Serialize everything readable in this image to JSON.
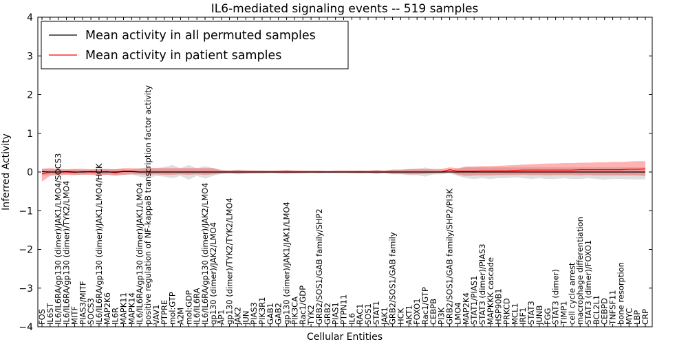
{
  "chart_data": {
    "type": "line",
    "title": "IL6-mediated signaling events -- 519 samples",
    "xlabel": "Cellular Entities",
    "ylabel": "Inferred Activity",
    "ylim": [
      -4,
      4
    ],
    "yticks": [
      "4",
      "3",
      "2",
      "1",
      "0",
      "−1",
      "−2",
      "−3",
      "−4"
    ],
    "ytick_values": [
      4,
      3,
      2,
      1,
      0,
      -1,
      -2,
      -3,
      -4
    ],
    "legend": {
      "position": "top-left",
      "entries": [
        {
          "label": "Mean activity in all permuted samples",
          "color": "#000000"
        },
        {
          "label": "Mean activity in patient samples",
          "color": "#ff0000"
        }
      ]
    },
    "categories": [
      "FOS",
      "IL6ST",
      "IL6/IL6RA/gp130 (dimer)/JAK1/LMO4/SOCS3",
      "IL6/IL6RA/gp130 (dimer)/TYK2/LMO4",
      "MITF",
      "PIAS3/MITF",
      "SOCS3",
      "IL6/IL6RA/gp130 (dimer)/JAK1/LMO4/HCK",
      "MAP2K6",
      "IL6R",
      "MAPK11",
      "MAPK14",
      "IL6/IL6RA/gp130 (dimer)/JAK1/LMO4",
      "positive regulation of NF-kappaB transcription factor activity",
      "VAV1",
      "PTPRE",
      "mol:GTP",
      "A2M",
      "mol:GDP",
      "IL6/IL6RA",
      "IL6/IL6RA/gp130 (dimer)/JAK2/LMO4",
      "gp130 (dimer)/JAK2/LMO4",
      "AP1",
      "gp130 (dimer)/TYK2/TYK2/LMO4",
      "JAK2",
      "JUN",
      "PIAS3",
      "PIK3R1",
      "GAB1",
      "GAB2",
      "gp130 (dimer)/JAK1/JAK1/LMO4",
      "PIK3CA",
      "Rac1/GDP",
      "TYK2",
      "GRB2/SOS1/GAB family/SHP2",
      "GRB2",
      "PIAS1",
      "PTPN11",
      "IL6",
      "RAC1",
      "SOS1",
      "STAT1",
      "JAK1",
      "GRB2/SOS1/GAB family",
      "HCK",
      "AKT1",
      "FOXO1",
      "Rac1/GTP",
      "CEBPB",
      "PI3K",
      "GRB2/SOS1/GAB family/SHP2/PI3K",
      "LMO4",
      "MAP2K4",
      "STAT1/PIAS1",
      "STAT3 (dimer)/PIAS3",
      "MAPKKK cascade",
      "HSP90B1",
      "PRKCD",
      "MCL1",
      "IRF1",
      "STAT3",
      "JUNB",
      "FGG",
      "STAT3 (dimer)",
      "TIMP1",
      "cell cycle arrest",
      "macrophage differentiation",
      "STAT3 (dimer)/FOXO1",
      "BCL2L1",
      "CEBPD",
      "TNFSF11",
      "bone resorption",
      "MYC",
      "LBP",
      "CRP"
    ],
    "series": [
      {
        "name": "Mean activity in all permuted samples",
        "color": "#000000",
        "values": [
          0.01,
          0.0,
          0.0,
          0.01,
          0.0,
          0.0,
          0.01,
          0.0,
          0.0,
          0.0,
          0.01,
          0.01,
          0.0,
          0.0,
          0.0,
          0.0,
          0.0,
          0.0,
          0.0,
          0.0,
          0.0,
          0.0,
          0.0,
          0.0,
          0.0,
          0.0,
          0.0,
          0.0,
          0.0,
          0.0,
          0.0,
          0.0,
          0.0,
          0.0,
          0.0,
          0.0,
          0.0,
          0.0,
          0.0,
          0.0,
          0.0,
          0.0,
          0.0,
          0.0,
          0.0,
          0.0,
          0.0,
          0.0,
          0.0,
          0.0,
          0.0,
          0.0,
          0.0,
          0.0,
          0.0,
          0.0,
          0.0,
          0.0,
          0.0,
          0.0,
          0.0,
          0.0,
          0.0,
          0.0,
          0.0,
          0.0,
          0.0,
          0.0,
          0.0,
          0.0,
          0.0,
          0.0,
          0.0,
          0.0,
          0.0
        ],
        "band_low": [
          -0.09,
          -0.08,
          -0.07,
          -0.06,
          -0.07,
          -0.06,
          -0.06,
          -0.08,
          -0.07,
          -0.07,
          -0.07,
          -0.06,
          -0.12,
          -0.15,
          -0.1,
          -0.12,
          -0.16,
          -0.1,
          -0.2,
          -0.1,
          -0.17,
          -0.1,
          -0.05,
          -0.04,
          -0.06,
          -0.05,
          -0.04,
          -0.04,
          -0.03,
          -0.04,
          -0.05,
          -0.04,
          -0.03,
          -0.03,
          -0.03,
          -0.03,
          -0.03,
          -0.03,
          -0.03,
          -0.04,
          -0.03,
          -0.05,
          -0.03,
          -0.06,
          -0.06,
          -0.08,
          -0.08,
          -0.12,
          -0.06,
          -0.06,
          -0.04,
          -0.1,
          -0.16,
          -0.18,
          -0.16,
          -0.18,
          -0.16,
          -0.16,
          -0.14,
          -0.16,
          -0.18,
          -0.16,
          -0.18,
          -0.18,
          -0.16,
          -0.18,
          -0.18,
          -0.16,
          -0.18,
          -0.2,
          -0.18,
          -0.18,
          -0.19,
          -0.19,
          -0.19
        ],
        "band_high": [
          0.09,
          0.08,
          0.07,
          0.06,
          0.07,
          0.06,
          0.06,
          0.08,
          0.07,
          0.07,
          0.07,
          0.06,
          0.1,
          0.12,
          0.1,
          0.13,
          0.18,
          0.1,
          0.18,
          0.1,
          0.15,
          0.1,
          0.05,
          0.04,
          0.06,
          0.05,
          0.04,
          0.04,
          0.03,
          0.04,
          0.05,
          0.04,
          0.03,
          0.03,
          0.03,
          0.03,
          0.03,
          0.03,
          0.03,
          0.04,
          0.03,
          0.05,
          0.03,
          0.06,
          0.06,
          0.08,
          0.08,
          0.12,
          0.06,
          0.06,
          0.04,
          0.08,
          0.12,
          0.12,
          0.12,
          0.12,
          0.12,
          0.12,
          0.12,
          0.12,
          0.12,
          0.12,
          0.12,
          0.12,
          0.12,
          0.12,
          0.12,
          0.12,
          0.12,
          0.12,
          0.12,
          0.12,
          0.12,
          0.12,
          0.12
        ]
      },
      {
        "name": "Mean activity in patient samples",
        "color": "#ff0000",
        "values": [
          -0.05,
          0.0,
          0.0,
          0.0,
          -0.01,
          0.01,
          0.0,
          0.0,
          0.01,
          -0.02,
          0.02,
          0.02,
          0.0,
          0.0,
          0.0,
          0.0,
          0.0,
          0.0,
          0.0,
          0.0,
          0.0,
          0.0,
          0.0,
          0.0,
          0.0,
          0.0,
          0.0,
          0.0,
          0.0,
          0.0,
          0.0,
          0.0,
          0.0,
          0.0,
          0.0,
          0.0,
          0.0,
          0.0,
          0.0,
          0.0,
          0.0,
          0.0,
          0.0,
          0.0,
          0.0,
          0.0,
          0.0,
          0.0,
          0.0,
          0.0,
          0.06,
          0.02,
          0.02,
          0.02,
          0.03,
          0.03,
          0.03,
          0.03,
          0.04,
          0.05,
          0.05,
          0.05,
          0.05,
          0.05,
          0.05,
          0.05,
          0.06,
          0.06,
          0.06,
          0.06,
          0.06,
          0.06,
          0.07,
          0.07,
          0.08
        ],
        "band_low": [
          -0.25,
          -0.1,
          -0.08,
          -0.07,
          -0.08,
          -0.07,
          -0.07,
          -0.08,
          -0.07,
          -0.1,
          -0.07,
          -0.06,
          -0.06,
          -0.07,
          -0.06,
          -0.07,
          -0.07,
          -0.06,
          -0.07,
          -0.06,
          -0.07,
          -0.06,
          -0.04,
          -0.03,
          -0.04,
          -0.03,
          -0.03,
          -0.03,
          -0.02,
          -0.03,
          -0.03,
          -0.03,
          -0.03,
          -0.02,
          -0.03,
          -0.02,
          -0.02,
          -0.02,
          -0.03,
          -0.03,
          -0.03,
          -0.04,
          -0.03,
          -0.05,
          -0.05,
          -0.06,
          -0.06,
          -0.05,
          -0.04,
          -0.03,
          0.0,
          -0.07,
          -0.1,
          -0.09,
          -0.09,
          -0.09,
          -0.08,
          -0.08,
          -0.08,
          -0.07,
          -0.08,
          -0.08,
          -0.09,
          -0.08,
          -0.08,
          -0.08,
          -0.09,
          -0.08,
          -0.09,
          -0.09,
          -0.09,
          -0.09,
          -0.09,
          -0.09,
          -0.1
        ],
        "band_high": [
          0.08,
          0.1,
          0.08,
          0.07,
          0.08,
          0.08,
          0.07,
          0.08,
          0.08,
          0.07,
          0.1,
          0.1,
          0.09,
          0.1,
          0.1,
          0.1,
          0.1,
          0.1,
          0.1,
          0.1,
          0.1,
          0.1,
          0.05,
          0.04,
          0.05,
          0.04,
          0.04,
          0.04,
          0.04,
          0.04,
          0.05,
          0.04,
          0.04,
          0.04,
          0.04,
          0.03,
          0.04,
          0.04,
          0.04,
          0.04,
          0.04,
          0.05,
          0.04,
          0.06,
          0.06,
          0.07,
          0.08,
          0.07,
          0.08,
          0.08,
          0.12,
          0.1,
          0.14,
          0.14,
          0.15,
          0.15,
          0.16,
          0.17,
          0.18,
          0.19,
          0.2,
          0.21,
          0.22,
          0.22,
          0.23,
          0.23,
          0.24,
          0.24,
          0.25,
          0.25,
          0.26,
          0.26,
          0.27,
          0.28,
          0.28
        ]
      }
    ]
  }
}
